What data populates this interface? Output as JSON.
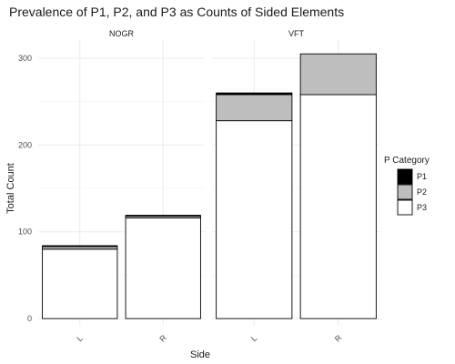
{
  "chart_data": {
    "type": "bar",
    "stacked": true,
    "title": "Prevalence of P1, P2, and P3 as Counts of Sided Elements",
    "xlabel": "Side",
    "ylabel": "Total Count",
    "ylim": [
      0,
      310
    ],
    "yticks": [
      0,
      100,
      200,
      300
    ],
    "ytick_labels": [
      "0",
      "100",
      "200",
      "300"
    ],
    "categories": [
      "L",
      "R"
    ],
    "grid": true,
    "legend": {
      "title": "P Category",
      "position": "right",
      "entries": [
        "P1",
        "P2",
        "P3"
      ]
    },
    "series_colors": {
      "P1": "#000000",
      "P2": "#bebebe",
      "P3": "#ffffff"
    },
    "panels": [
      {
        "name": "NOGR",
        "series": [
          {
            "name": "P1",
            "values": [
              1,
              1
            ]
          },
          {
            "name": "P2",
            "values": [
              3,
              2
            ]
          },
          {
            "name": "P3",
            "values": [
              80,
              116
            ]
          }
        ]
      },
      {
        "name": "VFT",
        "series": [
          {
            "name": "P1",
            "values": [
              2,
              0
            ]
          },
          {
            "name": "P2",
            "values": [
              30,
              47
            ]
          },
          {
            "name": "P3",
            "values": [
              228,
              258
            ]
          }
        ]
      }
    ]
  }
}
